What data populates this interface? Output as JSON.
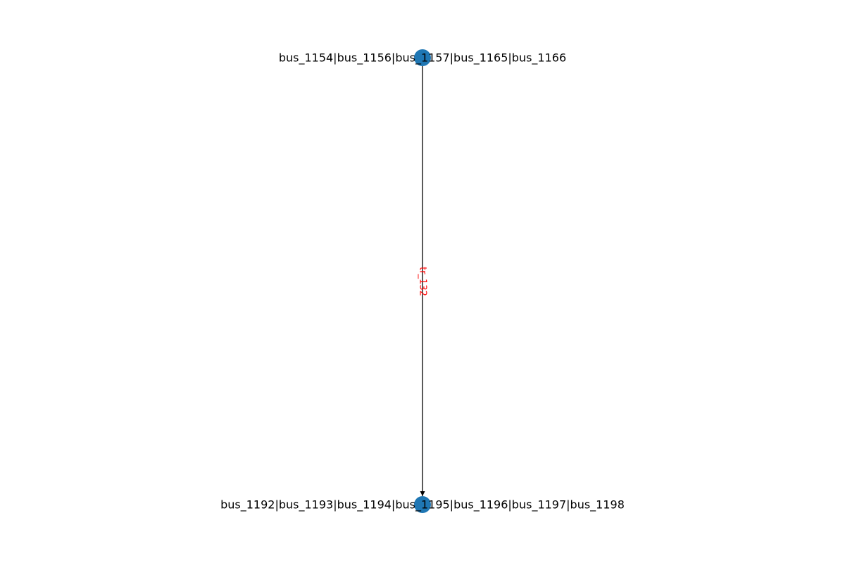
{
  "graph": {
    "nodes": [
      {
        "id": "top",
        "label": "bus_1154|bus_1156|bus_1157|bus_1165|bus_1166"
      },
      {
        "id": "bottom",
        "label": "bus_1192|bus_1193|bus_1194|bus_1195|bus_1196|bus_1197|bus_1198"
      }
    ],
    "edges": [
      {
        "source": "top",
        "target": "bottom",
        "label": "tr_132",
        "directed": true
      }
    ],
    "colors": {
      "node": "#1f77b4",
      "edge": "#000000",
      "edge_label": "#ff0000",
      "node_label": "#000000"
    }
  }
}
